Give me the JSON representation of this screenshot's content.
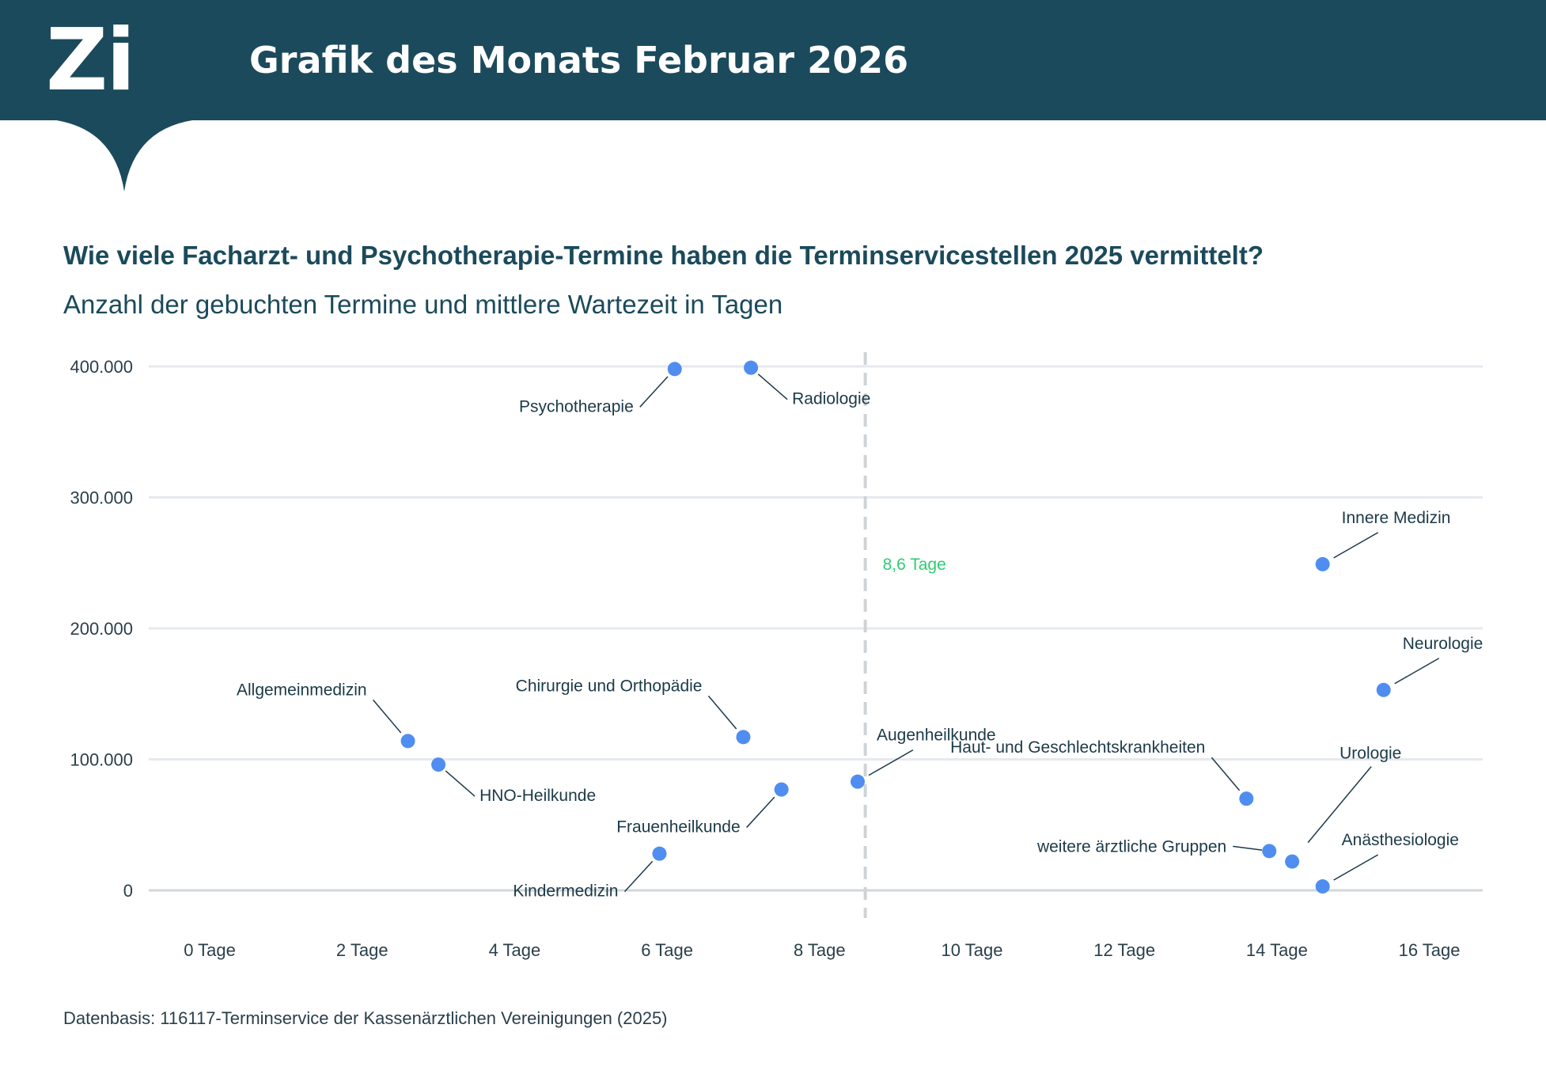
{
  "banner": {
    "logo_text": "Zi",
    "title": "Grafik des Monats Februar 2026"
  },
  "chart_data": {
    "type": "scatter",
    "title": "Wie viele Facharzt- und Psychotherapie-Termine haben die Terminservicestellen 2025 vermittelt?",
    "subtitle": "Anzahl der gebuchten Termine und mittlere Wartezeit in Tagen",
    "xlabel": "",
    "ylabel": "",
    "xlim": [
      -0.8,
      16.7
    ],
    "ylim": [
      0,
      400000
    ],
    "x_ticks": [
      0,
      2,
      4,
      6,
      8,
      10,
      12,
      14,
      16
    ],
    "x_tick_labels": [
      "0 Tage",
      "2 Tage",
      "4 Tage",
      "6 Tage",
      "8 Tage",
      "10 Tage",
      "12 Tage",
      "14 Tage",
      "16 Tage"
    ],
    "y_ticks": [
      0,
      100000,
      200000,
      300000,
      400000
    ],
    "y_tick_labels": [
      "0",
      "100.000",
      "200.000",
      "300.000",
      "400.000"
    ],
    "grid": "horizontal",
    "point_color": "#4f8ef0",
    "reference_line": {
      "x": 8.6,
      "label": "8,6 Tage",
      "color": "#2ecc71"
    },
    "points": [
      {
        "label": "Psychotherapie",
        "x": 6.1,
        "y": 398000,
        "label_pos": "left-below"
      },
      {
        "label": "Radiologie",
        "x": 7.1,
        "y": 399000,
        "label_pos": "right-below"
      },
      {
        "label": "Innere Medizin",
        "x": 14.6,
        "y": 249000,
        "label_pos": "right-above"
      },
      {
        "label": "Neurologie",
        "x": 15.4,
        "y": 153000,
        "label_pos": "right-above"
      },
      {
        "label": "Allgemeinmedizin",
        "x": 2.6,
        "y": 114000,
        "label_pos": "left-above"
      },
      {
        "label": "HNO-Heilkunde",
        "x": 3.0,
        "y": 96000,
        "label_pos": "right-below"
      },
      {
        "label": "Chirurgie und Orthopädie",
        "x": 7.0,
        "y": 117000,
        "label_pos": "left-above"
      },
      {
        "label": "Augenheilkunde",
        "x": 8.5,
        "y": 83000,
        "label_pos": "right-above"
      },
      {
        "label": "Frauenheilkunde",
        "x": 7.5,
        "y": 77000,
        "label_pos": "left-below"
      },
      {
        "label": "Kindermedizin",
        "x": 5.9,
        "y": 28000,
        "label_pos": "left-below"
      },
      {
        "label": "Haut- und Geschlechtskrankheiten",
        "x": 13.6,
        "y": 70000,
        "label_pos": "left-above"
      },
      {
        "label": "weitere ärztliche Gruppen",
        "x": 13.9,
        "y": 30000,
        "label_pos": "left"
      },
      {
        "label": "Urologie",
        "x": 14.2,
        "y": 22000,
        "label_pos": "right-above-far"
      },
      {
        "label": "Anästhesiologie",
        "x": 14.6,
        "y": 3000,
        "label_pos": "right-above"
      }
    ]
  },
  "footer": {
    "source": "Datenbasis: 116117-Terminservice der Kassenärztlichen Vereinigungen (2025)"
  }
}
